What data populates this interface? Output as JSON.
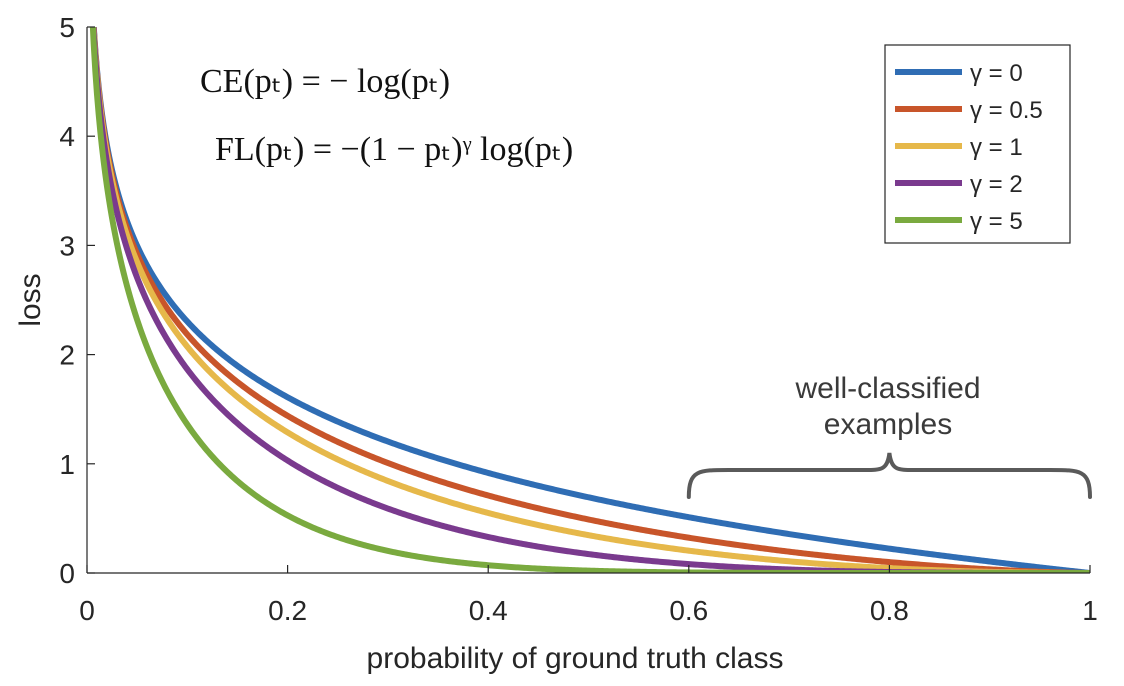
{
  "chart_data": {
    "type": "line",
    "xlabel": "probability of ground truth class",
    "ylabel": "loss",
    "xlim": [
      0,
      1
    ],
    "ylim": [
      0,
      5
    ],
    "xticks": [
      "0",
      "0.2",
      "0.4",
      "0.6",
      "0.8",
      "1"
    ],
    "xtick_values": [
      0,
      0.2,
      0.4,
      0.6,
      0.8,
      1
    ],
    "yticks": [
      "0",
      "1",
      "2",
      "3",
      "4",
      "5"
    ],
    "ytick_values": [
      0,
      1,
      2,
      3,
      4,
      5
    ],
    "grid": false,
    "legend_position": "top-right",
    "series": [
      {
        "name": "γ = 0",
        "gamma": 0,
        "color": "#2f6db4",
        "x": [
          0.01,
          0.05,
          0.1,
          0.2,
          0.3,
          0.4,
          0.5,
          0.6,
          0.7,
          0.8,
          0.9,
          1.0
        ],
        "y": [
          4.61,
          3.0,
          2.3,
          1.61,
          1.2,
          0.92,
          0.69,
          0.51,
          0.36,
          0.22,
          0.11,
          0
        ]
      },
      {
        "name": "γ = 0.5",
        "gamma": 0.5,
        "color": "#c8552a",
        "x": [
          0.01,
          0.05,
          0.1,
          0.2,
          0.3,
          0.4,
          0.5,
          0.6,
          0.7,
          0.8,
          0.9,
          1.0
        ],
        "y": [
          4.58,
          2.92,
          2.18,
          1.44,
          1.0,
          0.71,
          0.49,
          0.32,
          0.2,
          0.1,
          0.03,
          0
        ]
      },
      {
        "name": "γ = 1",
        "gamma": 1,
        "color": "#e6b84a",
        "x": [
          0.01,
          0.05,
          0.1,
          0.2,
          0.3,
          0.4,
          0.5,
          0.6,
          0.7,
          0.8,
          0.9,
          1.0
        ],
        "y": [
          4.56,
          2.85,
          2.07,
          1.29,
          0.84,
          0.55,
          0.35,
          0.2,
          0.11,
          0.04,
          0.01,
          0
        ]
      },
      {
        "name": "γ = 2",
        "gamma": 2,
        "color": "#7a3a8e",
        "x": [
          0.01,
          0.05,
          0.1,
          0.2,
          0.3,
          0.4,
          0.5,
          0.6,
          0.7,
          0.8,
          0.9,
          1.0
        ],
        "y": [
          4.52,
          2.71,
          1.87,
          1.03,
          0.59,
          0.33,
          0.17,
          0.08,
          0.03,
          0.01,
          0.0,
          0
        ]
      },
      {
        "name": "γ = 5",
        "gamma": 5,
        "color": "#7aaa3f",
        "x": [
          0.01,
          0.05,
          0.1,
          0.2,
          0.3,
          0.4,
          0.5,
          0.6,
          0.7,
          0.8,
          0.9,
          1.0
        ],
        "y": [
          4.38,
          2.32,
          1.36,
          0.53,
          0.2,
          0.07,
          0.02,
          0.0,
          0.0,
          0.0,
          0.0,
          0
        ]
      }
    ],
    "annotations": {
      "formula_ce": "CE(pₜ) = − log(pₜ)",
      "formula_fl": "FL(pₜ) = −(1 − pₜ)ᵞ log(pₜ)",
      "brace_label_line1": "well-classified",
      "brace_label_line2": "examples",
      "brace_range": [
        0.6,
        1.0
      ]
    }
  }
}
